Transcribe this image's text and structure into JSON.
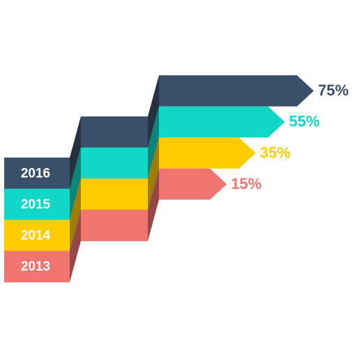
{
  "chart_data": {
    "type": "step-arrows",
    "categories": [
      "2016",
      "2015",
      "2014",
      "2013"
    ],
    "values": [
      75,
      55,
      35,
      15
    ],
    "value_labels": [
      "75%",
      "55%",
      "35%",
      "15%"
    ],
    "colors": [
      "#3a5068",
      "#12d6c6",
      "#ffcc00",
      "#f07470"
    ]
  }
}
